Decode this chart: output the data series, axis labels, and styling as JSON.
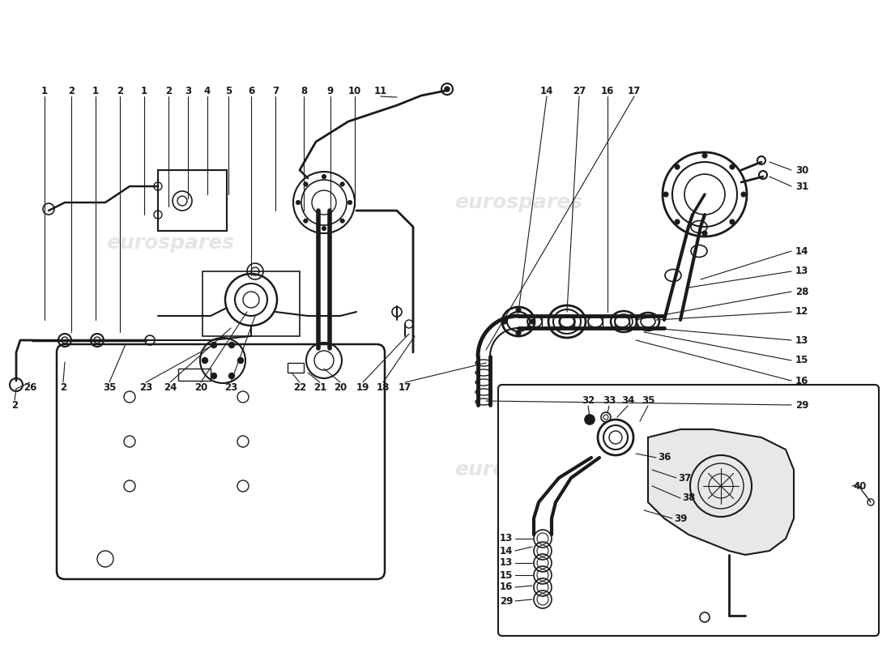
{
  "background_color": "#ffffff",
  "line_color": "#1a1a1a",
  "watermark_color": "#cccccc",
  "watermark_text": "eurospares",
  "coord_system": "image_pixels_800h_1100w"
}
